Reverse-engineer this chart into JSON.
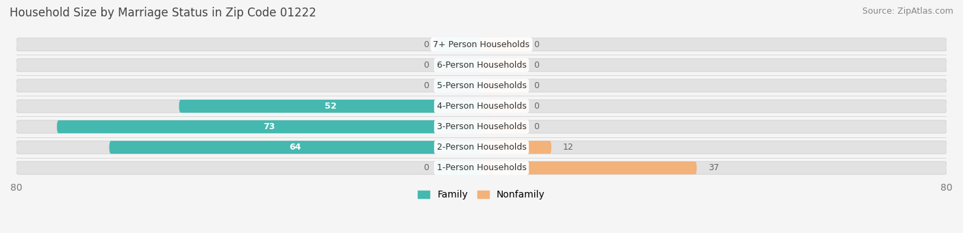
{
  "title": "Household Size by Marriage Status in Zip Code 01222",
  "source": "Source: ZipAtlas.com",
  "categories": [
    "7+ Person Households",
    "6-Person Households",
    "5-Person Households",
    "4-Person Households",
    "3-Person Households",
    "2-Person Households",
    "1-Person Households"
  ],
  "family_values": [
    0,
    0,
    0,
    52,
    73,
    64,
    0
  ],
  "nonfamily_values": [
    0,
    0,
    0,
    0,
    0,
    12,
    37
  ],
  "family_color": "#45B8B0",
  "nonfamily_color": "#F2B27A",
  "background_color": "#f5f5f5",
  "bar_bg_color": "#e2e2e2",
  "xlim": 80,
  "bar_height": 0.6,
  "stub_size": 8,
  "title_fontsize": 12,
  "source_fontsize": 9,
  "tick_fontsize": 10,
  "legend_fontsize": 10,
  "category_fontsize": 9,
  "value_fontsize": 9
}
